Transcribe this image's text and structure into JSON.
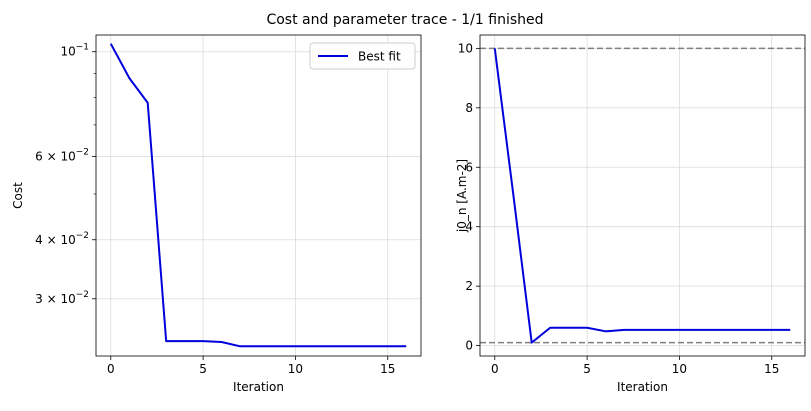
{
  "figure": {
    "title": "Cost and parameter trace - 1/1 finished"
  },
  "chart_data": [
    {
      "type": "line",
      "xlabel": "Iteration",
      "ylabel": "Cost",
      "yscale": "log",
      "xlim": [
        -0.8,
        16.8
      ],
      "ylim": [
        0.0227,
        0.1085
      ],
      "xticks": [
        0,
        5,
        10,
        15
      ],
      "xtick_labels": [
        "0",
        "5",
        "10",
        "15"
      ],
      "yticks": [
        0.1,
        0.06,
        0.04,
        0.03
      ],
      "ytick_labels": [
        {
          "base": "10",
          "exp": "−1",
          "mant": ""
        },
        {
          "base": "10",
          "exp": "−2",
          "mant": "6 × "
        },
        {
          "base": "10",
          "exp": "−2",
          "mant": "4 × "
        },
        {
          "base": "10",
          "exp": "−2",
          "mant": "3 × "
        }
      ],
      "yminor_ticks": [
        0.09,
        0.08,
        0.07,
        0.05
      ],
      "grid": true,
      "legend": {
        "position": "top-right",
        "entries": [
          "Best fit"
        ]
      },
      "series": [
        {
          "name": "Best fit",
          "color": "#0000dd",
          "x": [
            0,
            1,
            2,
            3,
            4,
            5,
            6,
            7,
            8,
            9,
            10,
            11,
            12,
            13,
            14,
            15,
            16
          ],
          "y": [
            0.104,
            0.088,
            0.078,
            0.0244,
            0.0244,
            0.0244,
            0.0243,
            0.0238,
            0.0238,
            0.0238,
            0.0238,
            0.0238,
            0.0238,
            0.0238,
            0.0238,
            0.0238,
            0.0238
          ]
        }
      ]
    },
    {
      "type": "line",
      "xlabel": "Iteration",
      "ylabel": "j0_n [A.m-2]",
      "yscale": "linear",
      "xlim": [
        -0.8,
        16.8
      ],
      "ylim": [
        -0.35,
        10.45
      ],
      "xticks": [
        0,
        5,
        10,
        15
      ],
      "xtick_labels": [
        "0",
        "5",
        "10",
        "15"
      ],
      "yticks": [
        0,
        2,
        4,
        6,
        8,
        10
      ],
      "ytick_labels": [
        "0",
        "2",
        "4",
        "6",
        "8",
        "10"
      ],
      "grid": true,
      "bounds": {
        "color": "#808080",
        "values": [
          0.1,
          10
        ]
      },
      "series": [
        {
          "color": "#0000dd",
          "x": [
            0,
            1,
            2,
            3,
            4,
            5,
            6,
            7,
            8,
            9,
            10,
            11,
            12,
            13,
            14,
            15,
            16
          ],
          "y": [
            10,
            5.1,
            0.1,
            0.6,
            0.6,
            0.6,
            0.48,
            0.53,
            0.53,
            0.53,
            0.53,
            0.53,
            0.53,
            0.53,
            0.53,
            0.53,
            0.53
          ]
        }
      ]
    }
  ]
}
